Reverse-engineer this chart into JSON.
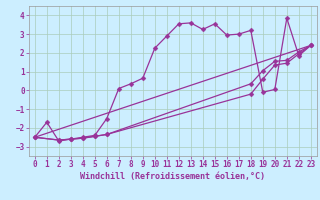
{
  "xlabel": "Windchill (Refroidissement éolien,°C)",
  "bg_color": "#cceeff",
  "line_color": "#993399",
  "grid_color": "#aaccbb",
  "xlim": [
    -0.5,
    23.5
  ],
  "ylim": [
    -3.5,
    4.5
  ],
  "xticks": [
    0,
    1,
    2,
    3,
    4,
    5,
    6,
    7,
    8,
    9,
    10,
    11,
    12,
    13,
    14,
    15,
    16,
    17,
    18,
    19,
    20,
    21,
    22,
    23
  ],
  "yticks": [
    -3,
    -2,
    -1,
    0,
    1,
    2,
    3,
    4
  ],
  "line1_x": [
    0,
    1,
    2,
    3,
    4,
    5,
    6,
    7,
    8,
    9,
    10,
    11,
    12,
    13,
    14,
    15,
    16,
    17,
    18,
    19,
    20,
    21,
    22,
    23
  ],
  "line1_y": [
    -2.5,
    -1.7,
    -2.7,
    -2.6,
    -2.5,
    -2.4,
    -1.5,
    0.1,
    0.35,
    0.65,
    2.25,
    2.9,
    3.55,
    3.6,
    3.25,
    3.55,
    2.95,
    3.0,
    3.2,
    -0.1,
    0.05,
    3.85,
    1.85,
    2.4
  ],
  "line2_x": [
    0,
    2,
    3,
    4,
    5,
    6,
    18,
    19,
    20,
    21,
    22,
    23
  ],
  "line2_y": [
    -2.5,
    -2.65,
    -2.6,
    -2.55,
    -2.45,
    -2.35,
    -0.2,
    0.6,
    1.35,
    1.45,
    1.95,
    2.4
  ],
  "line3_x": [
    0,
    2,
    3,
    4,
    5,
    6,
    18,
    19,
    20,
    21,
    22,
    23
  ],
  "line3_y": [
    -2.5,
    -2.65,
    -2.6,
    -2.55,
    -2.45,
    -2.35,
    0.35,
    1.05,
    1.55,
    1.6,
    2.05,
    2.4
  ],
  "line4_x": [
    0,
    23
  ],
  "line4_y": [
    -2.5,
    2.4
  ],
  "marker": "D",
  "markersize": 2.5,
  "linewidth": 0.9,
  "xlabel_fontsize": 6,
  "tick_fontsize": 5.5
}
